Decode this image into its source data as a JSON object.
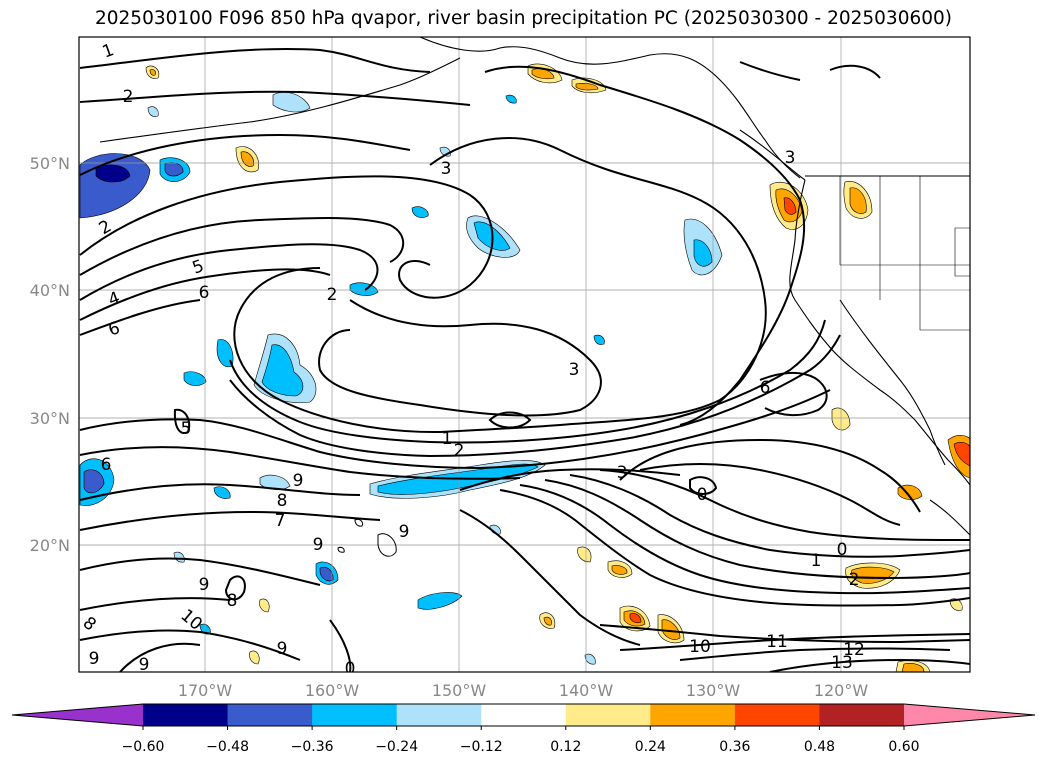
{
  "title": "2025030100 F096 850 hPa qvapor, river basin precipitation PC (2025030300 - 2025030600)",
  "longitude_ticks": [
    "170°W",
    "160°W",
    "150°W",
    "140°W",
    "130°W",
    "120°W"
  ],
  "latitude_ticks": [
    "50°N",
    "40°N",
    "30°N",
    "20°N"
  ],
  "colorbar": {
    "tick_labels": [
      "−0.60",
      "−0.48",
      "−0.36",
      "−0.24",
      "−0.12",
      "0.12",
      "0.24",
      "0.36",
      "0.48",
      "0.60"
    ],
    "bin_colors": [
      "#9932cc",
      "#00008b",
      "#3a5bcc",
      "#00bfff",
      "#aee2fa",
      "#ffffff",
      "#ffeb8a",
      "#ffa500",
      "#ff4500",
      "#b22222",
      "#ff88aa"
    ]
  },
  "contour_labels": [
    "1",
    "2",
    "3",
    "5",
    "4",
    "6",
    "6",
    "2",
    "2",
    "3",
    "1",
    "2",
    "3",
    "6",
    "6",
    "5",
    "9",
    "8",
    "7",
    "9",
    "9",
    "9",
    "8",
    "10",
    "8",
    "9",
    "9",
    "9",
    "0",
    "0",
    "1",
    "2",
    "10",
    "11",
    "12",
    "13",
    "0",
    "3"
  ]
}
